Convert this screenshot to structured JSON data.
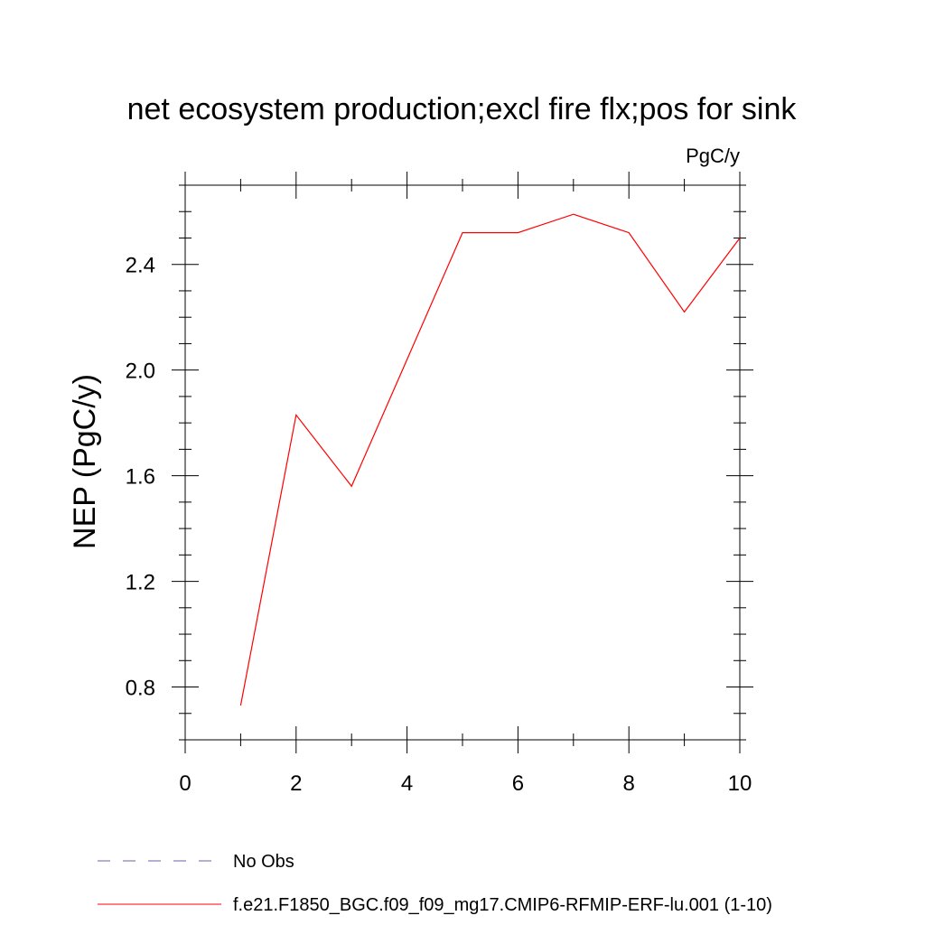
{
  "chart_data": {
    "type": "line",
    "title": "net ecosystem production;excl fire flx;pos for sink",
    "units_label": "PgC/y",
    "ylabel": "NEP  (PgC/y)",
    "xlabel": "",
    "xlim": [
      0,
      10
    ],
    "ylim": [
      0.6,
      2.7
    ],
    "x_ticks": [
      0,
      2,
      4,
      6,
      8,
      10
    ],
    "x_tick_labels": [
      "0",
      "2",
      "4",
      "6",
      "8",
      "10"
    ],
    "y_ticks": [
      0.8,
      1.2,
      1.6,
      2.0,
      2.4
    ],
    "y_tick_labels": [
      "0.8",
      "1.2",
      "1.6",
      "2.0",
      "2.4"
    ],
    "x_minor_step": 1,
    "y_minor_step": 0.1,
    "grid": false,
    "series": [
      {
        "name": "f.e21.F1850_BGC.f09_f09_mg17.CMIP6-RFMIP-ERF-lu.001 (1-10)",
        "color": "#ff0000",
        "x": [
          1,
          2,
          3,
          4,
          5,
          6,
          7,
          8,
          9,
          10
        ],
        "y": [
          0.73,
          1.83,
          1.56,
          2.04,
          2.52,
          2.52,
          2.59,
          2.52,
          2.22,
          2.5
        ]
      }
    ],
    "legend": {
      "placement": "bottom-left",
      "entries": [
        {
          "label": "No Obs",
          "color": "#6b5fa8",
          "style": "dashed"
        },
        {
          "label": "f.e21.F1850_BGC.f09_f09_mg17.CMIP6-RFMIP-ERF-lu.001 (1-10)",
          "color": "#ff0000",
          "style": "solid"
        }
      ]
    }
  }
}
